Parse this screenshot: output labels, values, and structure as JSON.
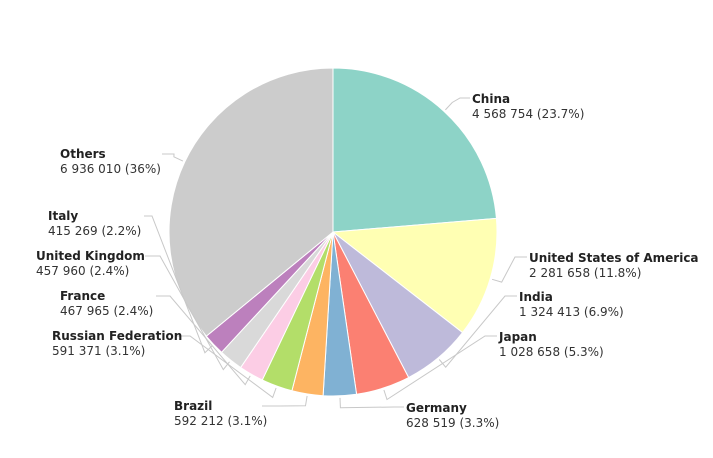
{
  "chart_data": {
    "type": "pie",
    "slices": [
      {
        "name": "China",
        "value": 4568754,
        "label": "4 568 754 (23.7%)",
        "color": "#8dd3c7"
      },
      {
        "name": "United States of America",
        "value": 2281658,
        "label": "2 281 658 (11.8%)",
        "color": "#ffffb3"
      },
      {
        "name": "India",
        "value": 1324413,
        "label": "1 324 413 (6.9%)",
        "color": "#bebada"
      },
      {
        "name": "Japan",
        "value": 1028658,
        "label": "1 028 658 (5.3%)",
        "color": "#fb8072"
      },
      {
        "name": "Germany",
        "value": 628519,
        "label": "628 519 (3.3%)",
        "color": "#80b1d3"
      },
      {
        "name": "Brazil",
        "value": 592212,
        "label": "592 212 (3.1%)",
        "color": "#fdb462"
      },
      {
        "name": "Russian Federation",
        "value": 591371,
        "label": "591 371 (3.1%)",
        "color": "#b3de69"
      },
      {
        "name": "France",
        "value": 467965,
        "label": "467 965 (2.4%)",
        "color": "#fccde5"
      },
      {
        "name": "United Kingdom",
        "value": 457960,
        "label": "457 960 (2.4%)",
        "color": "#d9d9d9"
      },
      {
        "name": "Italy",
        "value": 415269,
        "label": "415 269 (2.2%)",
        "color": "#bc80bd"
      },
      {
        "name": "Others",
        "value": 6936010,
        "label": "6 936 010 (36%)",
        "color": "#cccccc"
      }
    ]
  }
}
